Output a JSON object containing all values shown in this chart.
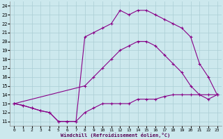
{
  "xlabel": "Windchill (Refroidissement éolien,°C)",
  "bg_color": "#cce8ed",
  "grid_color": "#aacdd4",
  "line_color": "#880088",
  "xlim": [
    -0.5,
    23.5
  ],
  "ylim": [
    10.5,
    24.5
  ],
  "xticks": [
    0,
    1,
    2,
    3,
    4,
    5,
    6,
    7,
    8,
    9,
    10,
    11,
    12,
    13,
    14,
    15,
    16,
    17,
    18,
    19,
    20,
    21,
    22,
    23
  ],
  "yticks": [
    11,
    12,
    13,
    14,
    15,
    16,
    17,
    18,
    19,
    20,
    21,
    22,
    23,
    24
  ],
  "line1_x": [
    0,
    1,
    2,
    3,
    4,
    5,
    6,
    7,
    8,
    9,
    10,
    11,
    12,
    13,
    14,
    15,
    16,
    17,
    18,
    19,
    20,
    21,
    22,
    23
  ],
  "line1_y": [
    13,
    12.8,
    12.5,
    12.2,
    12,
    11,
    11,
    11,
    12,
    12.5,
    13,
    13,
    13,
    13,
    13.5,
    13.5,
    13.5,
    13.8,
    14,
    14,
    14,
    14,
    14,
    14
  ],
  "line2_x": [
    0,
    1,
    2,
    3,
    4,
    5,
    6,
    7,
    8,
    9,
    10,
    11,
    12,
    13,
    14,
    15,
    16,
    17,
    18,
    19,
    20,
    21,
    22,
    23
  ],
  "line2_y": [
    13,
    12.8,
    12.5,
    12.2,
    12,
    11,
    11,
    11,
    20.5,
    21,
    21.5,
    22,
    23.5,
    23,
    23.5,
    23.5,
    23,
    22.5,
    22,
    21.5,
    20.5,
    17.5,
    16,
    14
  ],
  "line3_x": [
    0,
    8,
    9,
    10,
    11,
    12,
    13,
    14,
    15,
    16,
    17,
    18,
    19,
    20,
    21,
    22,
    23
  ],
  "line3_y": [
    13,
    15,
    16,
    17,
    18,
    19,
    19.5,
    20,
    20,
    19.5,
    18.5,
    17.5,
    16.5,
    15,
    14,
    13.5,
    14
  ]
}
